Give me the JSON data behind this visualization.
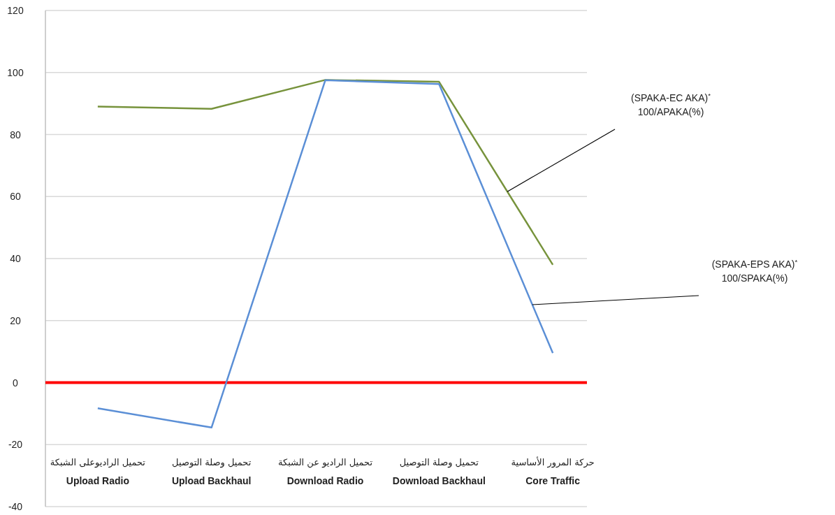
{
  "chart_data": {
    "type": "line",
    "categories": [
      "Upload Radio",
      "Upload Backhaul",
      "Download Radio",
      "Download Backhaul",
      "Core Traffic"
    ],
    "series": [
      {
        "name": "(SPAKA-EC AKA)$^{*}$ 100/APAKA(%)",
        "color": "#77933c",
        "values": [
          89,
          88.3,
          97.6,
          97,
          38
        ]
      },
      {
        "name": "(SPAKA-EPS AKA)$^{*}$ 100/SPAKA(%)",
        "color": "#5b8fd6",
        "values": [
          -8.3,
          -14.5,
          97.5,
          96.3,
          9.5
        ]
      }
    ],
    "ylim": [
      -40,
      120
    ],
    "yticks": [
      -40,
      -20,
      0,
      20,
      40,
      60,
      80,
      100,
      120
    ],
    "grid": "y",
    "legend": false,
    "marker": "none",
    "line_style": "solid",
    "ref_lines": [
      {
        "axis": "y",
        "value": 0,
        "color": "#ff0000"
      }
    ],
    "annotations": [
      "تحميل الراديوعلى الشبكة",
      "تحميل وصلة التوصيل",
      "تحميل الراديو عن الشبكة",
      "تحميل وصلة التوصيل",
      "حركة المرور الأساسية"
    ]
  }
}
